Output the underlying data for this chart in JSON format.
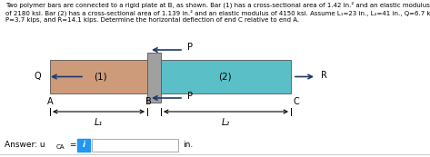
{
  "title_text": "Two polymer bars are connected to a rigid plate at B, as shown. Bar (1) has a cross-sectional area of 1.42 in.² and an elastic modulus\nof 2180 ksi. Bar (2) has a cross-sectional area of 1.139 in.² and an elastic modulus of 4150 ksi. Assume L₁=23 in., L₂=41 in., Q=6.7 kips,\nP=3.7 kips, and R=14.1 kips. Determine the horizontal deflection of end C relative to end A.",
  "bar1_color": "#CD9B7A",
  "bar2_color": "#5BBFC8",
  "plate_color": "#A0A0A0",
  "bg_color": "#FFFFFF",
  "answer_box_color": "#2196F3",
  "label1": "(1)",
  "label2": "(2)",
  "label_Q": "Q",
  "label_P": "P",
  "label_R": "R",
  "label_A": "A",
  "label_B": "B",
  "label_C": "C",
  "label_L1": "L₁",
  "label_L2": "L₂",
  "answer_prefix": "Answer: u",
  "answer_sub": "CA",
  "answer_suffix": " =",
  "answer_unit": "in."
}
